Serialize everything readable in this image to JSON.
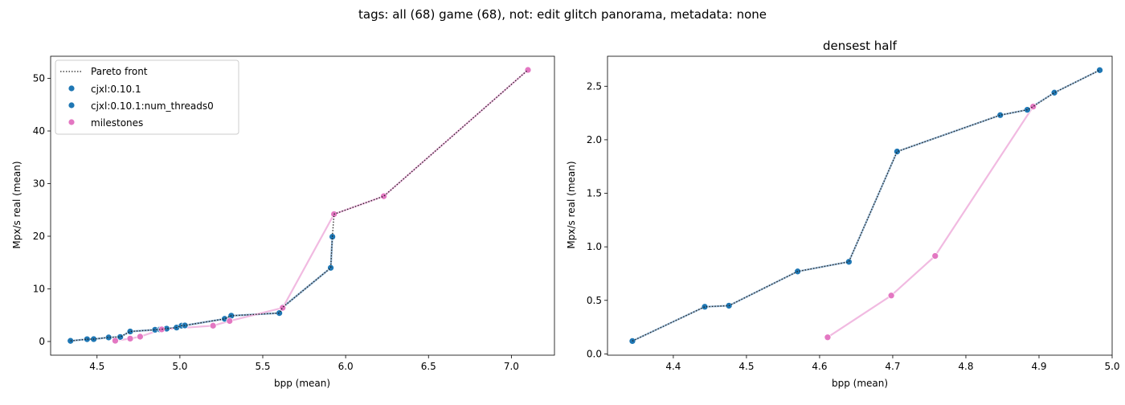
{
  "figure": {
    "suptitle": "tags: all (68) game (68), not: edit glitch panorama, metadata: none"
  },
  "colors": {
    "cjxl": "#1f77b4",
    "cjxl_line": "#8fb4d4",
    "milestones": "#e377c2",
    "milestones_line": "#f0b3de",
    "pareto": "#222222"
  },
  "legend": {
    "pareto": "Pareto front",
    "cjxl": "cjxl:0.10.1",
    "cjxl_threads": "cjxl:0.10.1:num_threads0",
    "milestones": "milestones"
  },
  "chart_data": [
    {
      "type": "scatter",
      "title": "",
      "xlabel": "bpp (mean)",
      "ylabel": "Mpx/s real (mean)",
      "xlim": [
        4.22,
        7.26
      ],
      "ylim": [
        -2.6,
        54.2
      ],
      "xticks": [
        "4.5",
        "5.0",
        "5.5",
        "6.0",
        "6.5",
        "7.0"
      ],
      "xtick_values": [
        4.5,
        5.0,
        5.5,
        6.0,
        6.5,
        7.0
      ],
      "yticks": [
        "0",
        "10",
        "20",
        "30",
        "40",
        "50"
      ],
      "ytick_values": [
        0,
        10,
        20,
        30,
        40,
        50
      ],
      "legend_position": "upper-left",
      "series": [
        {
          "name": "cjxl:0.10.1",
          "key": "cjxl",
          "x": [
            4.34,
            4.44,
            4.48,
            4.57,
            4.64,
            4.7,
            4.85,
            4.88,
            4.92,
            4.98,
            5.01,
            5.03,
            5.27,
            5.31,
            5.6,
            5.62,
            5.91,
            5.92
          ],
          "y": [
            0.12,
            0.44,
            0.45,
            0.77,
            0.86,
            1.9,
            2.23,
            2.28,
            2.44,
            2.65,
            3.0,
            3.05,
            4.3,
            4.9,
            5.4,
            6.5,
            14.0,
            19.9
          ]
        },
        {
          "name": "cjxl:0.10.1:num_threads0",
          "key": "cjxl_threads",
          "x": [
            4.34,
            4.44,
            4.48,
            4.57,
            4.64,
            4.7,
            4.85,
            4.88,
            4.92,
            4.98,
            5.01,
            5.03,
            5.27,
            5.31,
            5.6,
            5.62,
            5.91,
            5.92
          ],
          "y": [
            0.12,
            0.44,
            0.45,
            0.77,
            0.86,
            1.9,
            2.23,
            2.28,
            2.44,
            2.65,
            3.0,
            3.05,
            4.3,
            4.9,
            5.4,
            6.5,
            14.0,
            19.9
          ]
        },
        {
          "name": "milestones",
          "key": "milestones",
          "x": [
            4.61,
            4.7,
            4.76,
            4.89,
            5.2,
            5.3,
            5.62,
            5.93,
            6.23,
            7.1
          ],
          "y": [
            0.15,
            0.55,
            0.92,
            2.3,
            3.0,
            3.9,
            6.4,
            24.2,
            27.6,
            51.6
          ]
        }
      ],
      "pareto": {
        "x": [
          4.34,
          4.44,
          4.48,
          4.57,
          4.64,
          4.7,
          4.85,
          4.88,
          4.92,
          4.98,
          5.01,
          5.03,
          5.27,
          5.31,
          5.6,
          5.62,
          5.91,
          5.92,
          5.93,
          6.23,
          7.1
        ],
        "y": [
          0.12,
          0.44,
          0.45,
          0.77,
          0.86,
          1.9,
          2.23,
          2.28,
          2.44,
          2.65,
          3.0,
          3.05,
          4.3,
          4.9,
          5.4,
          6.5,
          14.0,
          19.9,
          24.2,
          27.6,
          51.6
        ]
      }
    },
    {
      "type": "scatter",
      "title": "densest half",
      "xlabel": "bpp (mean)",
      "ylabel": "Mpx/s real (mean)",
      "xlim": [
        4.31,
        5.0
      ],
      "ylim": [
        -0.012,
        2.78
      ],
      "xticks": [
        "4.4",
        "4.5",
        "4.6",
        "4.7",
        "4.8",
        "4.9",
        "5.0"
      ],
      "xtick_values": [
        4.4,
        4.5,
        4.6,
        4.7,
        4.8,
        4.9,
        5.0
      ],
      "yticks": [
        "0.0",
        "0.5",
        "1.0",
        "1.5",
        "2.0",
        "2.5"
      ],
      "ytick_values": [
        0.0,
        0.5,
        1.0,
        1.5,
        2.0,
        2.5
      ],
      "series": [
        {
          "name": "cjxl:0.10.1",
          "key": "cjxl",
          "x": [
            4.344,
            4.443,
            4.476,
            4.57,
            4.64,
            4.706,
            4.847,
            4.884,
            4.921,
            4.983
          ],
          "y": [
            0.12,
            0.44,
            0.45,
            0.77,
            0.86,
            1.89,
            2.23,
            2.28,
            2.44,
            2.65
          ]
        },
        {
          "name": "milestones",
          "key": "milestones",
          "x": [
            4.611,
            4.698,
            4.758,
            4.892
          ],
          "y": [
            0.155,
            0.545,
            0.915,
            2.31
          ]
        }
      ],
      "pareto": {
        "x": [
          4.344,
          4.443,
          4.476,
          4.57,
          4.64,
          4.706,
          4.847,
          4.884,
          4.892,
          4.921,
          4.983
        ],
        "y": [
          0.12,
          0.44,
          0.45,
          0.77,
          0.86,
          1.89,
          2.23,
          2.28,
          2.31,
          2.44,
          2.65
        ]
      }
    }
  ]
}
